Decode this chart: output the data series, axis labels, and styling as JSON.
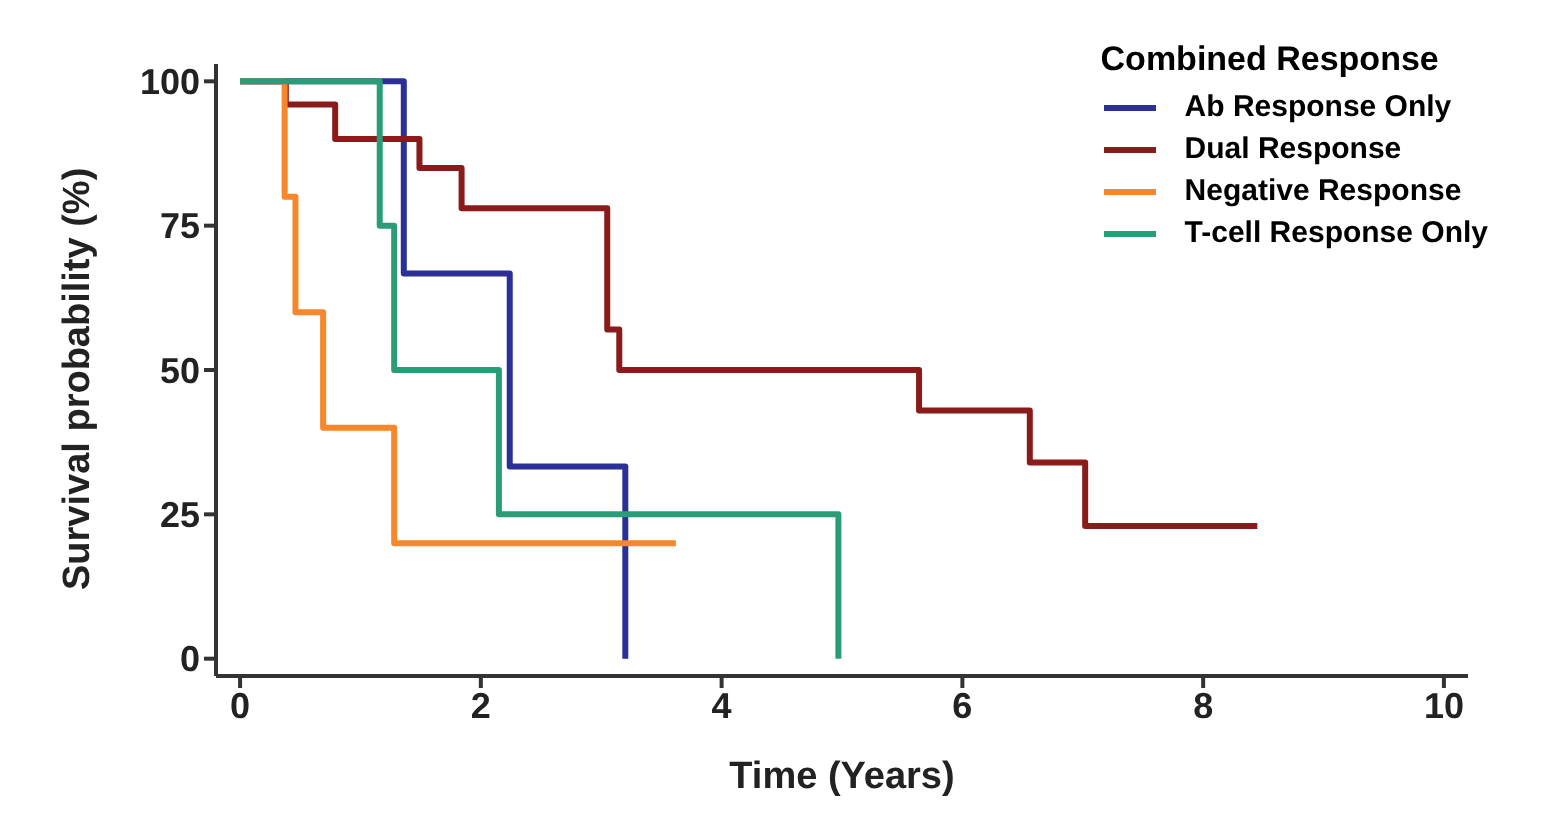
{
  "chart_data": {
    "type": "step",
    "xlabel": "Time (Years)",
    "ylabel": "Survival probability (%)",
    "legend_title": "Combined Response",
    "series": [
      {
        "name": "Ab Response Only",
        "color": "#2b2f9a",
        "x": [
          0,
          1.36,
          2.24,
          3.2
        ],
        "values": [
          100,
          66.7,
          33.3,
          0
        ]
      },
      {
        "name": "Dual Response",
        "color": "#8b1a1a",
        "x": [
          0,
          0.38,
          0.79,
          1.49,
          1.84,
          3.05,
          3.15,
          5.64,
          6.56,
          7.02,
          8.45
        ],
        "values": [
          100,
          96,
          90,
          85,
          78,
          57,
          50,
          43,
          34,
          23,
          23
        ]
      },
      {
        "name": "Negative Response",
        "color": "#f7872a",
        "x": [
          0,
          0.37,
          0.46,
          0.69,
          1.28,
          3.62
        ],
        "values": [
          100,
          80,
          60,
          40,
          20,
          20
        ]
      },
      {
        "name": "T-cell Response Only",
        "color": "#2a9d78",
        "x": [
          0,
          1.16,
          1.28,
          2.15,
          4.97
        ],
        "values": [
          100,
          75,
          50,
          25,
          0
        ]
      }
    ],
    "xlim": [
      -0.2,
      10.2
    ],
    "xticks": [
      0,
      2,
      4,
      6,
      8,
      10
    ],
    "ylim": [
      -3,
      103
    ],
    "yticks": [
      0,
      25,
      50,
      75,
      100
    ],
    "grid": false,
    "legend": "top right",
    "marker": "none",
    "line_style": "solid"
  }
}
